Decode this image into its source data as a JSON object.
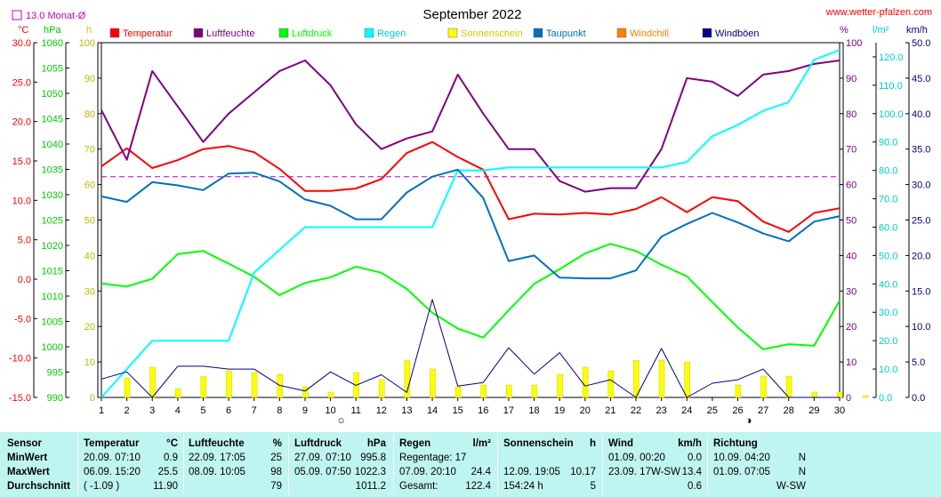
{
  "page": {
    "title": "September 2022",
    "website": "www.wetter-pfalzen.com",
    "month_avg_legend": "13.0 Monat-Ø",
    "axis_units": {
      "temp": "°C",
      "pressure": "hPa",
      "hours": "h",
      "percent": "%",
      "rain": "l/m²",
      "wind": "km/h"
    }
  },
  "chart_data": {
    "type": "line",
    "title": "September 2022",
    "x": [
      1,
      2,
      3,
      4,
      5,
      6,
      7,
      8,
      9,
      10,
      11,
      12,
      13,
      14,
      15,
      16,
      17,
      18,
      19,
      20,
      21,
      22,
      23,
      24,
      25,
      26,
      27,
      28,
      29,
      30
    ],
    "x_ticks": [
      "1",
      "2",
      "3",
      "4",
      "5",
      "6",
      "7",
      "8",
      "9",
      "10",
      "11",
      "12",
      "13",
      "14",
      "15",
      "16",
      "17",
      "18",
      "19",
      "20",
      "21",
      "22",
      "23",
      "24",
      "25",
      "26",
      "27",
      "28",
      "29",
      "30"
    ],
    "axes": {
      "temp": {
        "label": "°C",
        "range": [
          -15,
          30
        ],
        "ticks": [
          "30.0",
          "25.0",
          "20.0",
          "15.0",
          "10.0",
          "5.0",
          "0.0",
          "-5.0",
          "-10.0",
          "-15.0"
        ],
        "color": "#ff0000"
      },
      "pressure": {
        "label": "hPa",
        "range": [
          990,
          1060
        ],
        "ticks": [
          "1060",
          "1055",
          "1050",
          "1045",
          "1040",
          "1035",
          "1030",
          "1025",
          "1020",
          "1015",
          "1010",
          "1005",
          "1000",
          "995",
          "990"
        ],
        "color": "#00cc00"
      },
      "hours": {
        "label": "h",
        "range": [
          0,
          100
        ],
        "ticks": [
          "100",
          "90",
          "80",
          "70",
          "60",
          "50",
          "40",
          "30",
          "20",
          "10",
          "0"
        ],
        "color": "#dddd00"
      },
      "percent": {
        "label": "%",
        "range": [
          0,
          100
        ],
        "ticks": [
          "100",
          "90",
          "80",
          "70",
          "60",
          "50",
          "40",
          "30",
          "20",
          "10",
          "0"
        ],
        "color": "#800080"
      },
      "rain": {
        "label": "l/m²",
        "range": [
          0,
          125
        ],
        "ticks": [
          "120.0",
          "110.0",
          "100.0",
          "90.0",
          "80.0",
          "70.0",
          "60.0",
          "50.0",
          "40.0",
          "30.0",
          "20.0",
          "10.0",
          "0.0"
        ],
        "color": "#00cccc"
      },
      "wind": {
        "label": "km/h",
        "range": [
          0,
          50
        ],
        "ticks": [
          "50.0",
          "45.0",
          "40.0",
          "35.0",
          "30.0",
          "25.0",
          "20.0",
          "15.0",
          "10.0",
          "5.0",
          "0.0"
        ],
        "color": "#000080"
      }
    },
    "legend": [
      {
        "name": "Temperatur",
        "color": "#ff0000"
      },
      {
        "name": "Luftfeuchte",
        "color": "#800080"
      },
      {
        "name": "Luftdruck",
        "color": "#00ff00"
      },
      {
        "name": "Regen",
        "color": "#00ffff"
      },
      {
        "name": "Sonnenschein",
        "color": "#ffff00"
      },
      {
        "name": "Taupunkt",
        "color": "#0070c0"
      },
      {
        "name": "Windchill",
        "color": "#ff8000"
      },
      {
        "name": "Windböen",
        "color": "#000080"
      }
    ],
    "series": [
      {
        "name": "Temperatur",
        "axis": "temp",
        "color": "#ff0000",
        "values": [
          14.3,
          16.6,
          14.1,
          15.1,
          16.5,
          16.9,
          16.1,
          14.0,
          11.2,
          11.2,
          11.5,
          12.7,
          16.0,
          17.4,
          15.5,
          13.9,
          7.6,
          8.3,
          8.2,
          8.4,
          8.2,
          8.9,
          10.4,
          8.5,
          10.4,
          9.9,
          7.3,
          6.0,
          8.4,
          9.0
        ]
      },
      {
        "name": "Luftfeuchte",
        "axis": "percent",
        "color": "#800080",
        "values": [
          81,
          67,
          92,
          82,
          72,
          80,
          86,
          92,
          95,
          88,
          77,
          70,
          73,
          75,
          91,
          80,
          70,
          70,
          61,
          58,
          59,
          59,
          70,
          90,
          89,
          85,
          91,
          92,
          94,
          95
        ]
      },
      {
        "name": "Luftdruck",
        "axis": "pressure",
        "color": "#00ff00",
        "values": [
          1012.5,
          1011.9,
          1013.4,
          1018.3,
          1018.9,
          1016.4,
          1013.8,
          1010.2,
          1012.6,
          1013.7,
          1015.8,
          1014.6,
          1011.4,
          1006.7,
          1003.6,
          1001.8,
          1007.2,
          1012.4,
          1015.3,
          1018.4,
          1020.3,
          1018.9,
          1016.2,
          1013.9,
          1008.8,
          1003.8,
          999.5,
          1000.5,
          1000.2,
          1009.1
        ]
      },
      {
        "name": "Regen",
        "axis": "rain",
        "color": "#00ffff",
        "values": [
          0.0,
          10.0,
          20.0,
          20.0,
          20.0,
          20.0,
          44.0,
          52.0,
          60.0,
          60.0,
          60.0,
          60.0,
          60.0,
          60.0,
          80.0,
          80.0,
          81.0,
          81.0,
          81.0,
          81.0,
          81.0,
          81.0,
          81.0,
          83.0,
          92.0,
          96.0,
          101.0,
          104.0,
          119.0,
          122.4
        ]
      },
      {
        "name": "Taupunkt",
        "axis": "temp",
        "color": "#0070c0",
        "values": [
          10.5,
          9.8,
          12.3,
          11.9,
          11.3,
          13.4,
          13.5,
          12.4,
          10.1,
          9.3,
          7.6,
          7.6,
          11.0,
          13.0,
          13.9,
          10.3,
          2.3,
          3.0,
          0.2,
          0.1,
          0.1,
          1.1,
          5.4,
          7.0,
          8.4,
          7.2,
          5.8,
          4.8,
          7.3,
          8.0
        ]
      },
      {
        "name": "Windböen",
        "axis": "wind",
        "color": "#000080",
        "values": [
          2.6,
          3.6,
          0.0,
          4.4,
          4.4,
          4.0,
          4.0,
          1.7,
          0.9,
          3.6,
          1.7,
          3.2,
          0.7,
          13.8,
          1.6,
          2.1,
          7.0,
          3.3,
          6.3,
          1.6,
          2.5,
          0.0,
          6.9,
          0.0,
          2.0,
          2.5,
          4.0,
          0.0,
          0.0,
          0.0
        ]
      },
      {
        "name": "Sonnenschein",
        "axis": "hours",
        "type": "bar",
        "color": "#ffff00",
        "values": [
          5.5,
          8.5,
          2.5,
          6.0,
          7.5,
          7.0,
          6.5,
          3.0,
          1.5,
          7.0,
          5.0,
          10.5,
          8.0,
          3.0,
          3.5,
          3.5,
          3.5,
          6.5,
          8.5,
          7.5,
          10.5,
          10.5,
          10.0,
          0.0,
          3.5,
          6.0,
          6.0,
          1.5,
          1.5,
          0.5
        ]
      }
    ],
    "reference_line": {
      "axis": "temp",
      "value": 13.0,
      "color": "#c000c0"
    },
    "moon_markers": [
      {
        "day": 10,
        "symbol": "○"
      },
      {
        "day": 26,
        "symbol": "◑"
      }
    ],
    "grid": false
  },
  "stats": {
    "columns": [
      {
        "header": "Sensor",
        "unit": "",
        "rows": [
          "MinWert",
          "MaxWert",
          "Durchschnitt"
        ]
      },
      {
        "header": "Temperatur",
        "unit": "°C",
        "rows": [
          {
            "time": "20.09.  07:10",
            "value": "0.9"
          },
          {
            "time": "06.09.  15:20",
            "value": "25.5"
          },
          {
            "time": "( -1.09 )",
            "value": "11.90"
          }
        ]
      },
      {
        "header": "Luftfeuchte",
        "unit": "%",
        "rows": [
          {
            "time": "22.09.  17:05",
            "value": "25"
          },
          {
            "time": "08.09.  10:05",
            "value": "98"
          },
          {
            "time": "",
            "value": "79"
          }
        ]
      },
      {
        "header": "Luftdruck",
        "unit": "hPa",
        "rows": [
          {
            "time": "27.09.  07:10",
            "value": "995.8"
          },
          {
            "time": "05.09.  07:50",
            "value": "1022.3"
          },
          {
            "time": "",
            "value": "1011.2"
          }
        ]
      },
      {
        "header": "Regen",
        "unit": "l/m²",
        "rows": [
          {
            "time": "Regentage: 17",
            "value": ""
          },
          {
            "time": "07.09.  20:10",
            "value": "24.4"
          },
          {
            "time": "Gesamt:",
            "value": "122.4"
          }
        ]
      },
      {
        "header": "Sonnenschein",
        "unit": "h",
        "rows": [
          {
            "time": "",
            "value": ""
          },
          {
            "time": "12.09.  19:05",
            "value": "10.17"
          },
          {
            "time": "154:24 h",
            "value": "5"
          }
        ]
      },
      {
        "header": "Wind",
        "unit": "km/h",
        "rows": [
          {
            "time": "01.09.  00:20",
            "value": "0.0"
          },
          {
            "time": "23.09.  17W-SW",
            "value": "13.4"
          },
          {
            "time": "",
            "value": "0.6"
          }
        ]
      },
      {
        "header": "Richtung",
        "unit": "",
        "rows": [
          {
            "time": "10.09.  04:20",
            "value": "N"
          },
          {
            "time": "01.09.  07:05",
            "value": "N"
          },
          {
            "time": "",
            "value": "W-SW"
          }
        ]
      }
    ]
  }
}
